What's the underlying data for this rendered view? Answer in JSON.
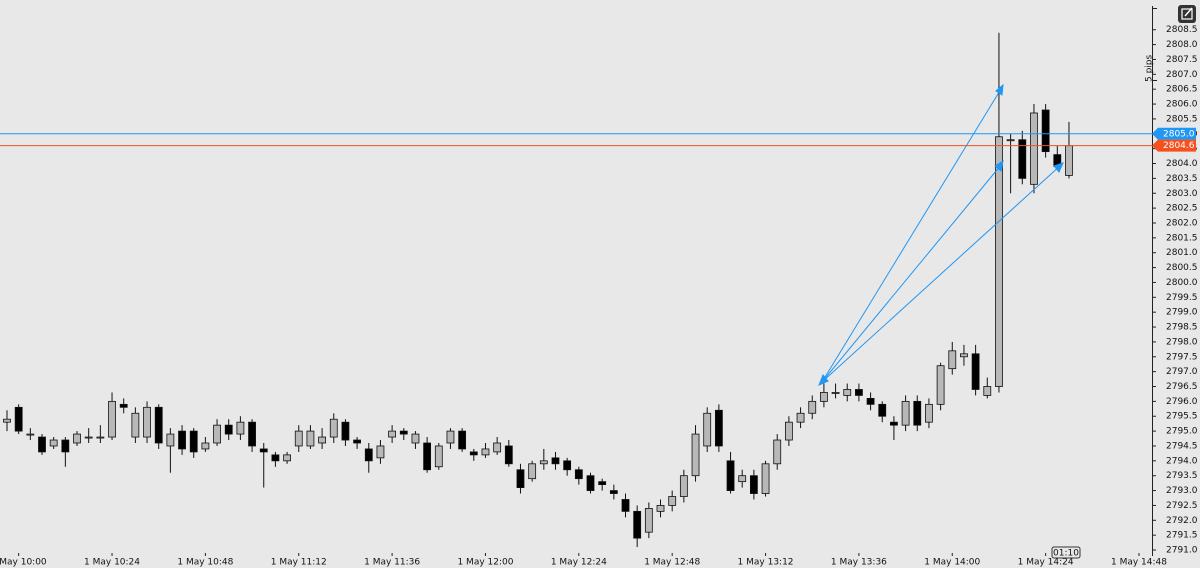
{
  "chart_data": {
    "type": "candlestick",
    "categories": [
      null,
      "1 May 10:00",
      null,
      null,
      null,
      null,
      null,
      null,
      null,
      "1 May 10:24",
      null,
      null,
      null,
      null,
      null,
      null,
      null,
      "1 May 10:48",
      null,
      null,
      null,
      null,
      null,
      null,
      null,
      "1 May 11:12",
      null,
      null,
      null,
      null,
      null,
      null,
      null,
      "1 May 11:36",
      null,
      null,
      null,
      null,
      null,
      null,
      null,
      "1 May 12:00",
      null,
      null,
      null,
      null,
      null,
      null,
      null,
      "1 May 12:24",
      null,
      null,
      null,
      null,
      null,
      null,
      null,
      "1 May 12:48",
      null,
      null,
      null,
      null,
      null,
      null,
      null,
      "1 May 13:12",
      null,
      null,
      null,
      null,
      null,
      null,
      null,
      "1 May 13:36",
      null,
      null,
      null,
      null,
      null,
      null,
      null,
      "1 May 14:00",
      null,
      null,
      null,
      null,
      null,
      null,
      null,
      "1 May 14:24",
      null,
      null,
      null,
      null,
      null,
      null,
      null,
      "1 May 14:48"
    ],
    "open": [
      2795.3,
      2795.8,
      2794.9,
      2794.8,
      2794.5,
      2794.7,
      2794.6,
      2794.8,
      2794.8,
      2794.8,
      2795.9,
      2794.8,
      2794.8,
      2795.8,
      2794.5,
      2795.0,
      2795.0,
      2794.4,
      2794.6,
      2795.2,
      2794.9,
      2795.3,
      2794.4,
      2794.2,
      2794.0,
      2794.5,
      2794.5,
      2794.6,
      2794.8,
      2795.3,
      2794.7,
      2794.4,
      2794.1,
      2794.8,
      2795.0,
      2794.6,
      2794.6,
      2793.8,
      2794.6,
      2795.0,
      2794.3,
      2794.2,
      2794.3,
      2794.5,
      2793.7,
      2793.4,
      2793.9,
      2794.1,
      2794.0,
      2793.7,
      2793.5,
      2793.3,
      2793.0,
      2792.7,
      2792.3,
      2791.6,
      2792.3,
      2792.5,
      2792.8,
      2793.5,
      2794.5,
      2795.7,
      2794.0,
      2793.3,
      2793.5,
      2792.9,
      2793.9,
      2794.7,
      2795.3,
      2795.6,
      2796.0,
      2796.3,
      2796.2,
      2796.4,
      2796.1,
      2795.9,
      2795.3,
      2795.2,
      2796.0,
      2795.3,
      2795.9,
      2797.1,
      2797.5,
      2797.6,
      2796.2,
      2796.5,
      2804.8,
      2804.8,
      2803.3,
      2805.8,
      2804.3,
      2803.6,
      null,
      null,
      null,
      null,
      null,
      null
    ],
    "high": [
      2795.7,
      2795.9,
      2795.1,
      2794.9,
      2794.8,
      2794.8,
      2795.0,
      2795.1,
      2795.2,
      2796.3,
      2796.1,
      2795.8,
      2796.0,
      2795.9,
      2795.1,
      2795.2,
      2795.1,
      2794.8,
      2795.4,
      2795.4,
      2795.5,
      2795.4,
      2794.6,
      2794.3,
      2794.3,
      2795.2,
      2795.2,
      2795.1,
      2795.6,
      2795.4,
      2794.8,
      2794.6,
      2794.7,
      2795.2,
      2795.1,
      2795.0,
      2794.8,
      2794.6,
      2795.1,
      2795.1,
      2794.4,
      2794.6,
      2794.8,
      2794.7,
      2793.9,
      2794.0,
      2794.4,
      2794.3,
      2794.1,
      2793.8,
      2793.6,
      2793.4,
      2793.2,
      2792.9,
      2792.5,
      2792.6,
      2792.7,
      2793.0,
      2793.7,
      2795.2,
      2795.8,
      2795.9,
      2794.3,
      2793.7,
      2793.7,
      2794.0,
      2794.9,
      2795.5,
      2795.8,
      2796.2,
      2796.6,
      2796.6,
      2796.6,
      2796.6,
      2796.3,
      2796.0,
      2795.5,
      2796.2,
      2796.2,
      2796.1,
      2797.3,
      2798.0,
      2797.9,
      2797.9,
      2796.8,
      2808.4,
      2805.0,
      2805.1,
      2806.0,
      2806.0,
      2804.6,
      2805.4,
      null,
      null,
      null,
      null,
      null,
      null
    ],
    "low": [
      2795.0,
      2794.9,
      2794.7,
      2794.2,
      2794.4,
      2793.8,
      2794.5,
      2794.6,
      2794.6,
      2794.7,
      2795.6,
      2794.6,
      2794.6,
      2794.4,
      2793.6,
      2794.2,
      2794.1,
      2794.3,
      2794.5,
      2794.7,
      2794.7,
      2794.3,
      2793.1,
      2793.8,
      2793.9,
      2794.3,
      2794.4,
      2794.4,
      2794.6,
      2794.5,
      2794.4,
      2793.6,
      2793.9,
      2794.6,
      2794.7,
      2794.4,
      2793.6,
      2793.7,
      2794.4,
      2794.3,
      2794.0,
      2794.1,
      2794.2,
      2793.8,
      2792.9,
      2793.3,
      2793.7,
      2793.7,
      2793.5,
      2793.2,
      2792.9,
      2793.0,
      2792.7,
      2792.1,
      2791.1,
      2791.4,
      2792.1,
      2792.3,
      2792.6,
      2793.3,
      2794.3,
      2794.3,
      2792.9,
      2793.1,
      2792.7,
      2792.8,
      2793.7,
      2794.5,
      2795.1,
      2795.4,
      2795.8,
      2796.1,
      2796.0,
      2796.0,
      2795.7,
      2795.3,
      2794.7,
      2795.0,
      2795.0,
      2795.1,
      2795.7,
      2796.9,
      2797.2,
      2796.2,
      2796.1,
      2796.3,
      2803.0,
      2803.3,
      2803.0,
      2804.2,
      2803.8,
      2803.5,
      null,
      null,
      null,
      null,
      null,
      null
    ],
    "close": [
      2795.4,
      2795.0,
      2794.9,
      2794.3,
      2794.7,
      2794.3,
      2794.9,
      2794.8,
      2794.8,
      2796.0,
      2795.8,
      2795.6,
      2795.8,
      2794.6,
      2794.9,
      2794.4,
      2794.3,
      2794.6,
      2795.2,
      2794.9,
      2795.3,
      2794.5,
      2794.3,
      2794.0,
      2794.2,
      2795.0,
      2795.0,
      2794.8,
      2795.4,
      2794.7,
      2794.6,
      2794.0,
      2794.5,
      2795.0,
      2794.9,
      2794.9,
      2793.7,
      2794.5,
      2795.0,
      2794.4,
      2794.2,
      2794.4,
      2794.6,
      2793.9,
      2793.1,
      2793.9,
      2794.0,
      2793.9,
      2793.7,
      2793.4,
      2793.0,
      2793.2,
      2792.9,
      2792.3,
      2791.4,
      2792.4,
      2792.5,
      2792.8,
      2793.5,
      2794.9,
      2795.6,
      2794.5,
      2793.0,
      2793.5,
      2792.9,
      2793.9,
      2794.7,
      2795.3,
      2795.6,
      2796.0,
      2796.3,
      2796.3,
      2796.4,
      2796.2,
      2795.9,
      2795.5,
      2795.2,
      2796.0,
      2795.2,
      2795.9,
      2797.2,
      2797.7,
      2797.6,
      2796.4,
      2796.5,
      2804.9,
      2804.8,
      2803.5,
      2805.7,
      2804.4,
      2803.9,
      2804.6,
      null,
      null,
      null,
      null,
      null,
      null
    ],
    "up_color": "#b8b8b8",
    "down_color": "#000000",
    "ylim": [
      2790.9,
      2809.5
    ],
    "yticks": [
      {
        "value": 2791,
        "label": "2791.0"
      },
      2791.5,
      {
        "value": 2792,
        "label": "2792.0"
      },
      2792.5,
      {
        "value": 2793,
        "label": "2793.0"
      },
      2793.5,
      {
        "value": 2794,
        "label": "2794.0"
      },
      2794.5,
      {
        "value": 2795,
        "label": "2795.0"
      },
      2795.5,
      {
        "value": 2796,
        "label": "2796.0"
      },
      2796.5,
      {
        "value": 2797,
        "label": "2797.0"
      },
      2797.5,
      {
        "value": 2798,
        "label": "2798.0"
      },
      2798.5,
      {
        "value": 2799,
        "label": "2799.0"
      },
      2799.5,
      {
        "value": 2800,
        "label": "2800.0"
      },
      2800.5,
      {
        "value": 2801,
        "label": "2801.0"
      },
      2801.5,
      {
        "value": 2802,
        "label": "2802.0"
      },
      2802.5,
      {
        "value": 2803,
        "label": "2803.0"
      },
      2803.5,
      {
        "value": 2804,
        "label": "2804.0"
      },
      2804.5,
      {
        "value": 2805,
        "label": "2805.0"
      },
      2805.5,
      {
        "value": 2806,
        "label": "2806.0"
      },
      2806.5,
      {
        "value": 2807,
        "label": "2807.0"
      },
      2807.5,
      {
        "value": 2808,
        "label": "2808.0"
      },
      2808.5
    ],
    "hlines": [
      {
        "value": 2805,
        "label": "2805.0",
        "color": "#2196f3"
      },
      {
        "value": 2804.6,
        "label": "2804.6",
        "color": "#f4511e"
      }
    ],
    "measure_label": "5 pips",
    "countdown": "01:10"
  }
}
